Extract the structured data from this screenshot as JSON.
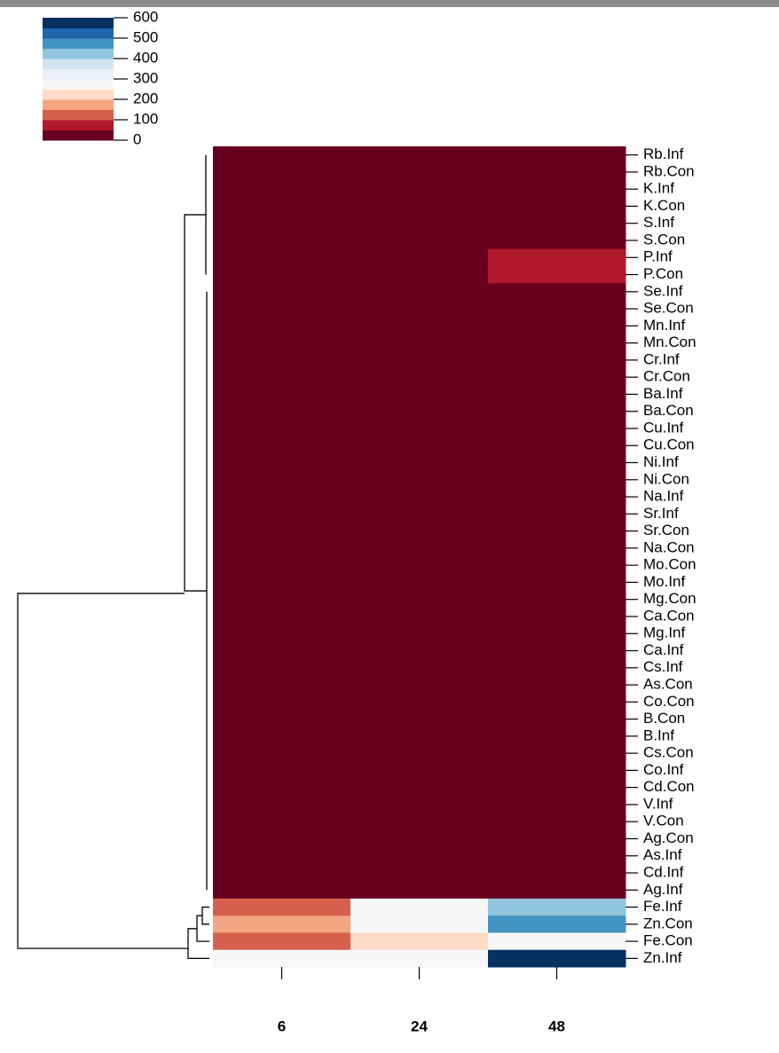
{
  "chart_data": {
    "type": "heatmap",
    "categories": [
      "6",
      "24",
      "48"
    ],
    "rows": [
      "Rb.Inf",
      "Rb.Con",
      "K.Inf",
      "K.Con",
      "S.Inf",
      "S.Con",
      "P.Inf",
      "P.Con",
      "Se.Inf",
      "Se.Con",
      "Mn.Inf",
      "Mn.Con",
      "Cr.Inf",
      "Cr.Con",
      "Ba.Inf",
      "Ba.Con",
      "Cu.Inf",
      "Cu.Con",
      "Ni.Inf",
      "Ni.Con",
      "Na.Inf",
      "Sr.Inf",
      "Sr.Con",
      "Na.Con",
      "Mo.Con",
      "Mo.Inf",
      "Mg.Con",
      "Ca.Con",
      "Mg.Inf",
      "Ca.Inf",
      "Cs.Inf",
      "As.Con",
      "Co.Con",
      "B.Con",
      "B.Inf",
      "Cs.Con",
      "Co.Inf",
      "Cd.Con",
      "V.Inf",
      "V.Con",
      "Ag.Con",
      "As.Inf",
      "Cd.Inf",
      "Ag.Inf",
      "Fe.Inf",
      "Zn.Con",
      "Fe.Con",
      "Zn.Inf"
    ],
    "values": [
      [
        5,
        5,
        10
      ],
      [
        5,
        5,
        10
      ],
      [
        5,
        5,
        10
      ],
      [
        5,
        5,
        10
      ],
      [
        5,
        5,
        10
      ],
      [
        5,
        5,
        10
      ],
      [
        5,
        10,
        70
      ],
      [
        5,
        10,
        70
      ],
      [
        5,
        5,
        5
      ],
      [
        5,
        5,
        5
      ],
      [
        5,
        5,
        5
      ],
      [
        5,
        5,
        5
      ],
      [
        5,
        5,
        5
      ],
      [
        5,
        5,
        5
      ],
      [
        5,
        5,
        5
      ],
      [
        5,
        5,
        5
      ],
      [
        5,
        5,
        5
      ],
      [
        5,
        5,
        5
      ],
      [
        5,
        5,
        5
      ],
      [
        5,
        5,
        5
      ],
      [
        5,
        5,
        5
      ],
      [
        5,
        5,
        5
      ],
      [
        5,
        5,
        5
      ],
      [
        5,
        5,
        5
      ],
      [
        5,
        5,
        5
      ],
      [
        5,
        5,
        5
      ],
      [
        5,
        5,
        5
      ],
      [
        5,
        5,
        5
      ],
      [
        5,
        5,
        5
      ],
      [
        5,
        5,
        5
      ],
      [
        5,
        5,
        5
      ],
      [
        5,
        5,
        5
      ],
      [
        5,
        5,
        5
      ],
      [
        5,
        5,
        5
      ],
      [
        5,
        5,
        5
      ],
      [
        5,
        5,
        5
      ],
      [
        5,
        5,
        5
      ],
      [
        5,
        5,
        5
      ],
      [
        5,
        5,
        5
      ],
      [
        5,
        5,
        5
      ],
      [
        5,
        5,
        5
      ],
      [
        5,
        5,
        5
      ],
      [
        5,
        5,
        5
      ],
      [
        5,
        5,
        5
      ],
      [
        120,
        280,
        420
      ],
      [
        170,
        290,
        470
      ],
      [
        130,
        230,
        290
      ],
      [
        270,
        280,
        580
      ]
    ],
    "colors": [
      "#67001f",
      "#b2182b",
      "#d6604d",
      "#f4a582",
      "#fddbc7",
      "#f7f7f7",
      "#eaf1f6",
      "#d1e5f0",
      "#92c5de",
      "#4393c3",
      "#2166ac",
      "#053061"
    ],
    "zlim": [
      0,
      600
    ],
    "zticks": [
      0,
      100,
      200,
      300,
      400,
      500,
      600
    ]
  }
}
